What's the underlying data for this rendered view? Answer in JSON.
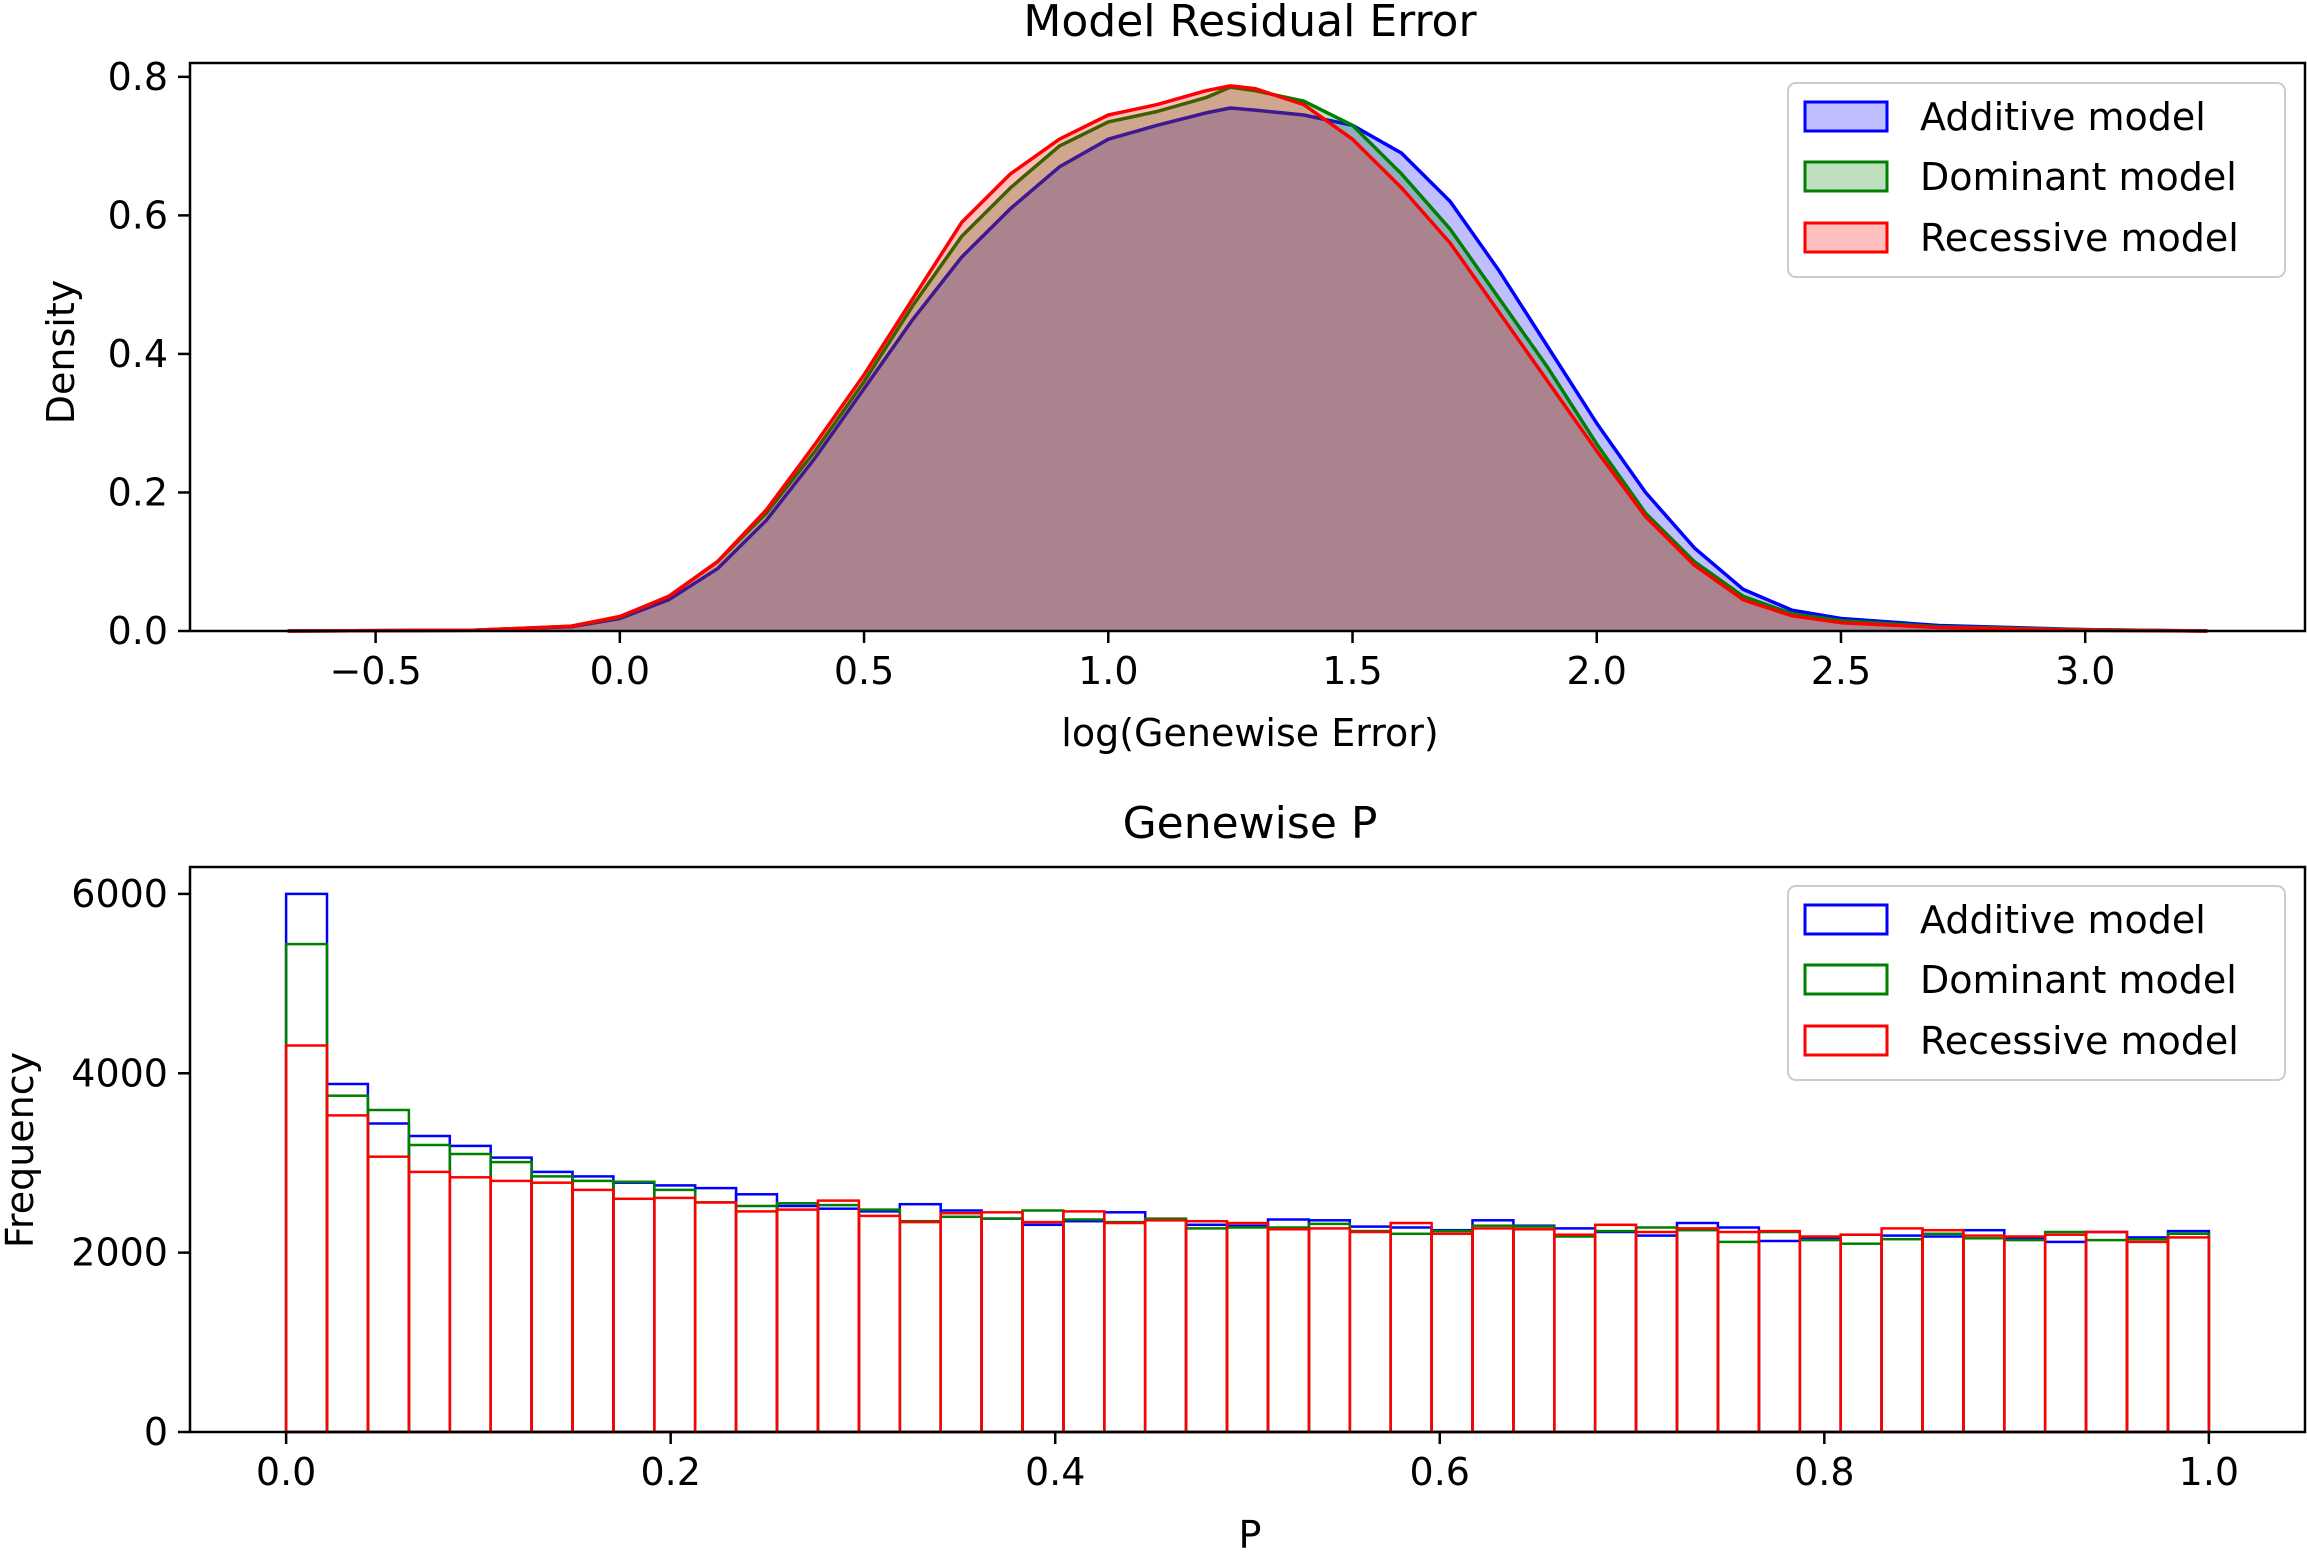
{
  "chart_data": [
    {
      "type": "area",
      "title": "Model Residual Error",
      "xlabel": "log(Genewise Error)",
      "ylabel": "Density",
      "xlim": [
        -0.88,
        3.45
      ],
      "ylim": [
        0,
        0.82
      ],
      "xticks": [
        -0.5,
        0.0,
        0.5,
        1.0,
        1.5,
        2.0,
        2.5,
        3.0
      ],
      "xtick_labels": [
        "−0.5",
        "0.0",
        "0.5",
        "1.0",
        "1.5",
        "2.0",
        "2.5",
        "3.0"
      ],
      "yticks": [
        0.0,
        0.2,
        0.4,
        0.6,
        0.8
      ],
      "ytick_labels": [
        "0.0",
        "0.2",
        "0.4",
        "0.6",
        "0.8"
      ],
      "grid": false,
      "legend": "top-right",
      "x": [
        -0.68,
        -0.3,
        -0.1,
        0.0,
        0.1,
        0.2,
        0.3,
        0.4,
        0.5,
        0.6,
        0.7,
        0.8,
        0.9,
        1.0,
        1.1,
        1.2,
        1.25,
        1.3,
        1.4,
        1.5,
        1.6,
        1.7,
        1.8,
        1.9,
        2.0,
        2.1,
        2.2,
        2.3,
        2.4,
        2.5,
        2.7,
        3.0,
        3.25
      ],
      "series": [
        {
          "name": "Additive model",
          "color": "#0000ff",
          "fill": "rgba(0,0,255,0.25)",
          "values": [
            0.0,
            0.001,
            0.006,
            0.018,
            0.045,
            0.09,
            0.16,
            0.25,
            0.35,
            0.45,
            0.54,
            0.61,
            0.67,
            0.71,
            0.73,
            0.748,
            0.755,
            0.752,
            0.745,
            0.73,
            0.69,
            0.62,
            0.52,
            0.41,
            0.3,
            0.2,
            0.12,
            0.06,
            0.03,
            0.018,
            0.008,
            0.002,
            0.0
          ]
        },
        {
          "name": "Dominant model",
          "color": "#008000",
          "fill": "rgba(0,128,0,0.25)",
          "values": [
            0.0,
            0.001,
            0.007,
            0.02,
            0.05,
            0.1,
            0.17,
            0.26,
            0.36,
            0.47,
            0.57,
            0.64,
            0.7,
            0.735,
            0.75,
            0.77,
            0.785,
            0.78,
            0.765,
            0.73,
            0.66,
            0.58,
            0.48,
            0.38,
            0.27,
            0.17,
            0.1,
            0.05,
            0.025,
            0.015,
            0.006,
            0.002,
            0.0
          ]
        },
        {
          "name": "Recessive model",
          "color": "#ff0000",
          "fill": "rgba(255,0,0,0.25)",
          "values": [
            0.0,
            0.001,
            0.007,
            0.021,
            0.05,
            0.1,
            0.175,
            0.27,
            0.37,
            0.48,
            0.59,
            0.66,
            0.71,
            0.745,
            0.76,
            0.78,
            0.787,
            0.783,
            0.76,
            0.71,
            0.64,
            0.56,
            0.46,
            0.36,
            0.26,
            0.165,
            0.095,
            0.045,
            0.022,
            0.012,
            0.005,
            0.001,
            0.0
          ]
        }
      ]
    },
    {
      "type": "bar",
      "title": "Genewise P",
      "xlabel": "P",
      "ylabel": "Frequency",
      "xlim": [
        -0.05,
        1.05
      ],
      "ylim": [
        0,
        6300
      ],
      "xticks": [
        0.0,
        0.2,
        0.4,
        0.6,
        0.8,
        1.0
      ],
      "xtick_labels": [
        "0.0",
        "0.2",
        "0.4",
        "0.6",
        "0.8",
        "1.0"
      ],
      "yticks": [
        0,
        2000,
        4000,
        6000
      ],
      "ytick_labels": [
        "0",
        "2000",
        "4000",
        "6000"
      ],
      "grid": false,
      "legend": "top-right",
      "bins": 47,
      "bin_start": 0.0,
      "bin_end": 1.0,
      "series": [
        {
          "name": "Additive model",
          "color": "#0000ff",
          "values": [
            6000,
            3880,
            3440,
            3300,
            3190,
            3060,
            2900,
            2850,
            2780,
            2750,
            2720,
            2650,
            2520,
            2490,
            2460,
            2540,
            2470,
            2380,
            2310,
            2350,
            2450,
            2360,
            2310,
            2300,
            2370,
            2360,
            2290,
            2280,
            2250,
            2360,
            2300,
            2270,
            2230,
            2190,
            2330,
            2280,
            2130,
            2160,
            2200,
            2190,
            2180,
            2250,
            2160,
            2120,
            2230,
            2170,
            2240
          ]
        },
        {
          "name": "Dominant model",
          "color": "#008000",
          "values": [
            5440,
            3750,
            3590,
            3200,
            3100,
            3010,
            2850,
            2800,
            2790,
            2700,
            2560,
            2520,
            2550,
            2530,
            2480,
            2350,
            2400,
            2380,
            2470,
            2370,
            2340,
            2380,
            2270,
            2280,
            2280,
            2320,
            2240,
            2210,
            2240,
            2300,
            2290,
            2180,
            2240,
            2280,
            2250,
            2120,
            2230,
            2140,
            2100,
            2150,
            2210,
            2160,
            2140,
            2230,
            2140,
            2150,
            2210
          ]
        },
        {
          "name": "Recessive model",
          "color": "#ff0000",
          "values": [
            4310,
            3530,
            3070,
            2900,
            2840,
            2800,
            2780,
            2700,
            2600,
            2610,
            2560,
            2460,
            2480,
            2580,
            2410,
            2340,
            2440,
            2450,
            2340,
            2460,
            2330,
            2360,
            2350,
            2330,
            2260,
            2270,
            2230,
            2330,
            2210,
            2270,
            2260,
            2200,
            2310,
            2230,
            2270,
            2230,
            2240,
            2180,
            2200,
            2270,
            2250,
            2190,
            2180,
            2200,
            2230,
            2120,
            2170
          ]
        }
      ]
    }
  ]
}
